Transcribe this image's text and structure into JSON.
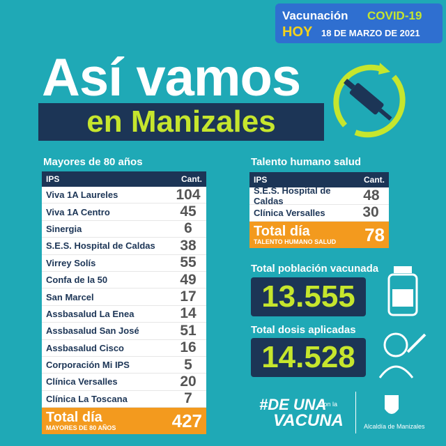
{
  "header": {
    "label": "Vacunación",
    "campaign": "COVID-19",
    "today": "HOY",
    "date": "18 DE MARZO DE 2021"
  },
  "title": {
    "line1": "Así vamos",
    "line2": "en Manizales"
  },
  "left_table": {
    "caption": "Mayores de 80 años",
    "columns": [
      "IPS",
      "Cant."
    ],
    "rows": [
      [
        "Viva 1A Laureles",
        104
      ],
      [
        "Viva 1A Centro",
        45
      ],
      [
        "Sinergia",
        6
      ],
      [
        "S.E.S. Hospital de Caldas",
        38
      ],
      [
        "Virrey Solís",
        55
      ],
      [
        "Confa de la 50",
        49
      ],
      [
        "San Marcel",
        17
      ],
      [
        "Assbasalud La Enea",
        14
      ],
      [
        "Assbasalud San José",
        51
      ],
      [
        "Assbasalud Cisco",
        16
      ],
      [
        "Corporación Mi IPS",
        5
      ],
      [
        "Clínica Versalles",
        20
      ],
      [
        "Clínica La Toscana",
        7
      ]
    ],
    "total_label": "Total día",
    "total_sub": "MAYORES DE 80 AÑOS",
    "total": 427
  },
  "right_table": {
    "caption": "Talento humano salud",
    "columns": [
      "IPS",
      "Cant."
    ],
    "rows": [
      [
        "S.E.S. Hospital de Caldas",
        48
      ],
      [
        "Clínica Versalles",
        30
      ]
    ],
    "total_label": "Total día",
    "total_sub": "TALENTO HUMANO SALUD",
    "total": 78
  },
  "vaccinated": {
    "label": "Total población vacunada",
    "value": "13.555"
  },
  "doses": {
    "label": "Total dosis aplicadas",
    "value": "14.528"
  },
  "footer": {
    "hashtag": "#DE UNA",
    "connector": "con la",
    "campaign": "VACUNA",
    "org": "Alcaldía de Manizales"
  }
}
